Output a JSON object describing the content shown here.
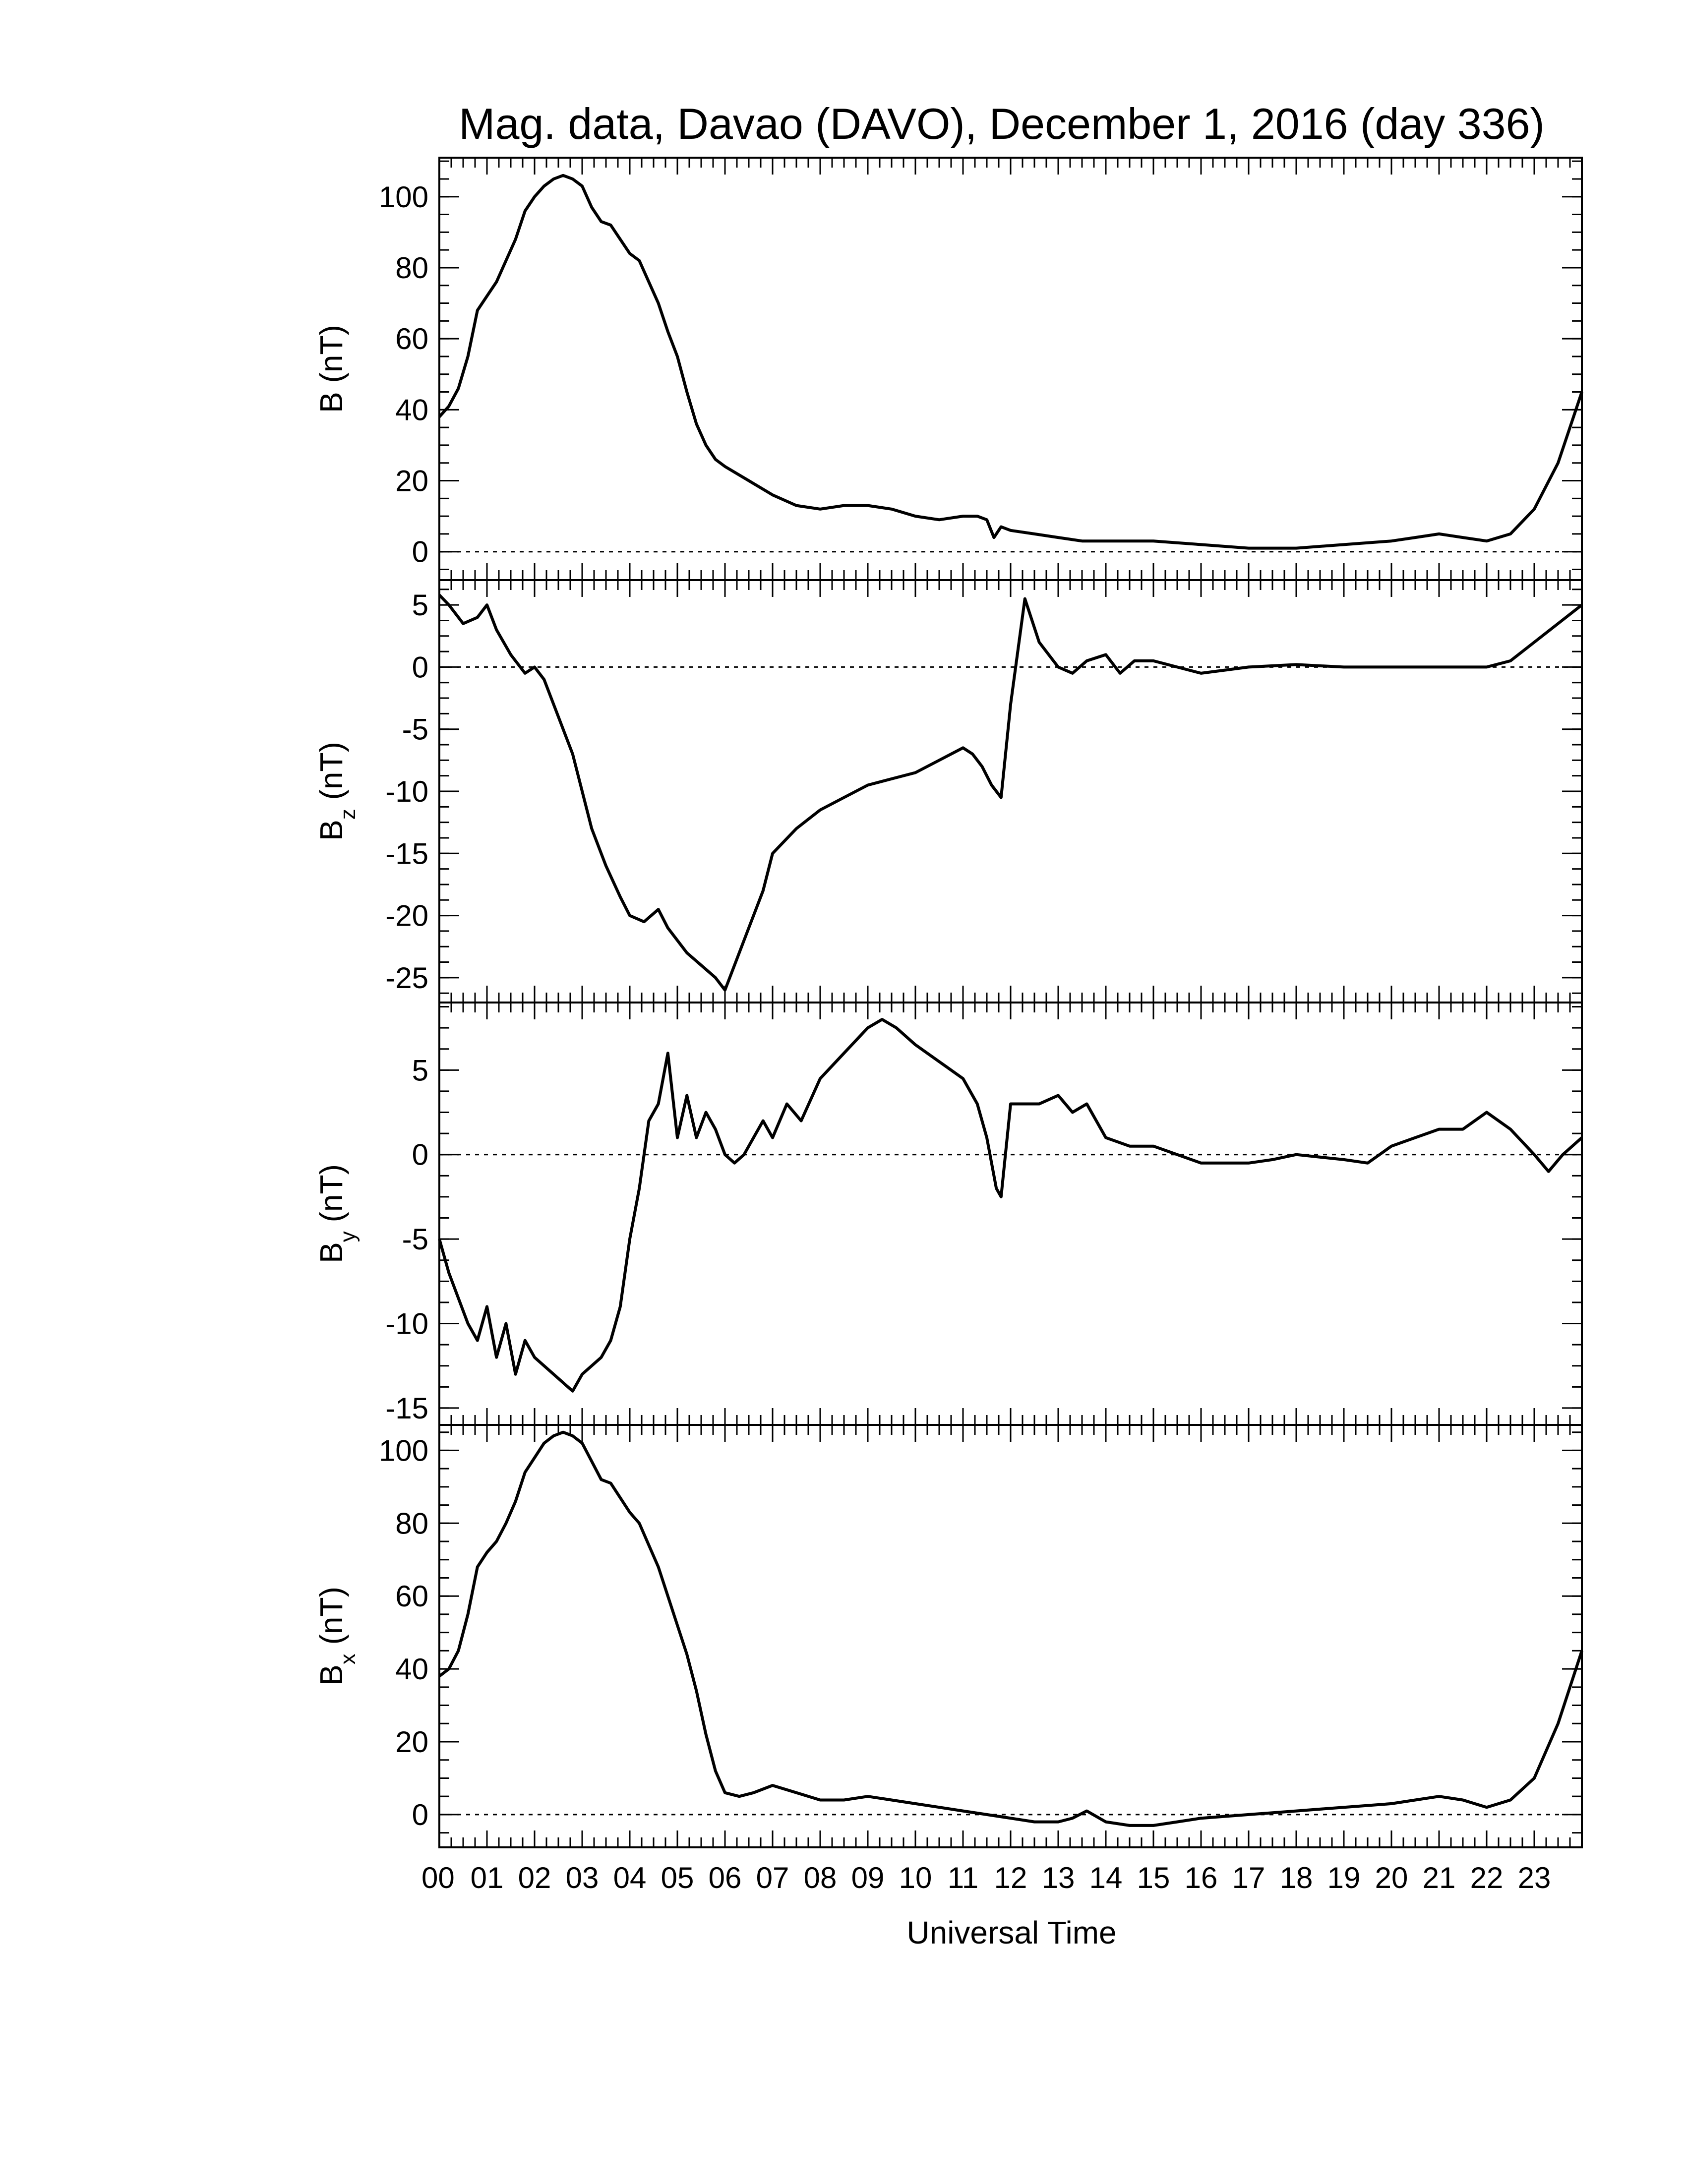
{
  "chart_data": {
    "type": "line",
    "title": "Mag. data, Davao (DAVO), December 1, 2016 (day 336)",
    "xlabel": "Universal Time",
    "x_ticks": [
      "00",
      "01",
      "02",
      "03",
      "04",
      "05",
      "06",
      "07",
      "08",
      "09",
      "10",
      "11",
      "12",
      "13",
      "14",
      "15",
      "16",
      "17",
      "18",
      "19",
      "20",
      "21",
      "22",
      "23"
    ],
    "xlim": [
      0,
      24
    ],
    "grid": false,
    "panels": [
      {
        "name": "B",
        "ylabel_main": "B",
        "ylabel_sub": "",
        "ylabel_unit": "(nT)",
        "ylim": [
          -8,
          111
        ],
        "yticks": [
          0,
          20,
          40,
          60,
          80,
          100
        ],
        "zero_line": true,
        "x": [
          0,
          0.2,
          0.4,
          0.6,
          0.8,
          1.0,
          1.2,
          1.4,
          1.6,
          1.8,
          2.0,
          2.2,
          2.4,
          2.6,
          2.8,
          3.0,
          3.2,
          3.4,
          3.6,
          3.8,
          4.0,
          4.2,
          4.4,
          4.6,
          4.8,
          5.0,
          5.2,
          5.4,
          5.6,
          5.8,
          6.0,
          6.5,
          7.0,
          7.5,
          8.0,
          8.5,
          9.0,
          9.5,
          10.0,
          10.5,
          11.0,
          11.3,
          11.5,
          11.65,
          11.8,
          12.0,
          12.5,
          13.0,
          13.5,
          14.0,
          14.5,
          15.0,
          16.0,
          17.0,
          18.0,
          19.0,
          20.0,
          20.5,
          21.0,
          21.5,
          22.0,
          22.5,
          23.0,
          23.5,
          24.0
        ],
        "values": [
          38,
          41,
          46,
          55,
          68,
          72,
          76,
          82,
          88,
          96,
          100,
          103,
          105,
          106,
          105,
          103,
          97,
          93,
          92,
          88,
          84,
          82,
          76,
          70,
          62,
          55,
          45,
          36,
          30,
          26,
          24,
          20,
          16,
          13,
          12,
          13,
          13,
          12,
          10,
          9,
          10,
          10,
          9,
          4,
          7,
          6,
          5,
          4,
          3,
          3,
          3,
          3,
          2,
          1,
          1,
          2,
          3,
          4,
          5,
          4,
          3,
          5,
          12,
          25,
          45
        ]
      },
      {
        "name": "Bz",
        "ylabel_main": "B",
        "ylabel_sub": "z",
        "ylabel_unit": "(nT)",
        "ylim": [
          -27,
          7
        ],
        "yticks": [
          5,
          0,
          -5,
          -10,
          -15,
          -20,
          -25
        ],
        "zero_line": true,
        "x": [
          0,
          0.2,
          0.5,
          0.8,
          1.0,
          1.2,
          1.5,
          1.8,
          2.0,
          2.2,
          2.5,
          2.8,
          3.0,
          3.2,
          3.5,
          3.8,
          4.0,
          4.3,
          4.6,
          4.8,
          5.0,
          5.2,
          5.5,
          5.8,
          6.0,
          6.2,
          6.5,
          6.8,
          7.0,
          7.5,
          8.0,
          8.5,
          9.0,
          9.5,
          10.0,
          10.5,
          11.0,
          11.2,
          11.4,
          11.6,
          11.8,
          12.0,
          12.3,
          12.6,
          13.0,
          13.3,
          13.6,
          14.0,
          14.3,
          14.6,
          15.0,
          16.0,
          17.0,
          18.0,
          19.0,
          20.0,
          21.0,
          22.0,
          22.5,
          23.0,
          23.5,
          24.0
        ],
        "values": [
          5.8,
          5,
          3.5,
          4,
          5,
          3,
          1,
          -0.5,
          0,
          -1,
          -4,
          -7,
          -10,
          -13,
          -16,
          -18.5,
          -20,
          -20.5,
          -19.5,
          -21,
          -22,
          -23,
          -24,
          -25,
          -26,
          -24,
          -21,
          -18,
          -15,
          -13,
          -11.5,
          -10.5,
          -9.5,
          -9,
          -8.5,
          -7.5,
          -6.5,
          -7,
          -8,
          -9.5,
          -10.5,
          -3,
          5.5,
          2,
          0,
          -0.5,
          0.5,
          1,
          -0.5,
          0.5,
          0.5,
          -0.5,
          0,
          0.2,
          0,
          0,
          0,
          0,
          0.5,
          2,
          3.5,
          5
        ]
      },
      {
        "name": "By",
        "ylabel_main": "B",
        "ylabel_sub": "y",
        "ylabel_unit": "(nT)",
        "ylim": [
          -16,
          9
        ],
        "yticks": [
          5,
          0,
          -5,
          -10,
          -15
        ],
        "zero_line": true,
        "x": [
          0,
          0.2,
          0.4,
          0.6,
          0.8,
          1.0,
          1.2,
          1.4,
          1.6,
          1.8,
          2.0,
          2.2,
          2.4,
          2.6,
          2.8,
          3.0,
          3.2,
          3.4,
          3.6,
          3.8,
          4.0,
          4.2,
          4.4,
          4.6,
          4.8,
          5.0,
          5.2,
          5.4,
          5.6,
          5.8,
          6.0,
          6.2,
          6.4,
          6.6,
          6.8,
          7.0,
          7.3,
          7.6,
          8.0,
          8.5,
          9.0,
          9.3,
          9.6,
          10.0,
          10.5,
          11.0,
          11.3,
          11.5,
          11.7,
          11.8,
          12.0,
          12.3,
          12.6,
          13.0,
          13.3,
          13.6,
          14.0,
          14.5,
          15.0,
          16.0,
          17.0,
          17.5,
          18.0,
          19.0,
          19.5,
          20.0,
          20.5,
          21.0,
          21.5,
          22.0,
          22.5,
          23.0,
          23.3,
          23.6,
          24.0
        ],
        "values": [
          -5,
          -7,
          -8.5,
          -10,
          -11,
          -9,
          -12,
          -10,
          -13,
          -11,
          -12,
          -12.5,
          -13,
          -13.5,
          -14,
          -13,
          -12.5,
          -12,
          -11,
          -9,
          -5,
          -2,
          2,
          3,
          6,
          1,
          3.5,
          1,
          2.5,
          1.5,
          0,
          -0.5,
          0,
          1,
          2,
          1,
          3,
          2,
          4.5,
          6,
          7.5,
          8,
          7.5,
          6.5,
          5.5,
          4.5,
          3,
          1,
          -2,
          -2.5,
          3,
          3,
          3,
          3.5,
          2.5,
          3,
          1,
          0.5,
          0.5,
          -0.5,
          -0.5,
          -0.3,
          0,
          -0.3,
          -0.5,
          0.5,
          1,
          1.5,
          1.5,
          2.5,
          1.5,
          0,
          -1,
          0,
          1
        ]
      },
      {
        "name": "Bx",
        "ylabel_main": "B",
        "ylabel_sub": "x",
        "ylabel_unit": "(nT)",
        "ylim": [
          -9,
          107
        ],
        "yticks": [
          0,
          20,
          40,
          60,
          80,
          100
        ],
        "zero_line": true,
        "x": [
          0,
          0.2,
          0.4,
          0.6,
          0.8,
          1.0,
          1.2,
          1.4,
          1.6,
          1.8,
          2.0,
          2.2,
          2.4,
          2.6,
          2.8,
          3.0,
          3.2,
          3.4,
          3.6,
          3.8,
          4.0,
          4.2,
          4.4,
          4.6,
          4.8,
          5.0,
          5.2,
          5.4,
          5.6,
          5.8,
          6.0,
          6.3,
          6.6,
          7.0,
          7.5,
          8.0,
          8.5,
          9.0,
          9.5,
          10.0,
          10.5,
          11.0,
          11.5,
          12.0,
          12.5,
          13.0,
          13.3,
          13.6,
          14.0,
          14.5,
          15.0,
          15.5,
          16.0,
          17.0,
          18.0,
          19.0,
          20.0,
          20.5,
          21.0,
          21.5,
          22.0,
          22.5,
          23.0,
          23.5,
          24.0
        ],
        "values": [
          38,
          40,
          45,
          55,
          68,
          72,
          75,
          80,
          86,
          94,
          98,
          102,
          104,
          105,
          104,
          102,
          97,
          92,
          91,
          87,
          83,
          80,
          74,
          68,
          60,
          52,
          44,
          34,
          22,
          12,
          6,
          5,
          6,
          8,
          6,
          4,
          4,
          5,
          4,
          3,
          2,
          1,
          0,
          -1,
          -2,
          -2,
          -1,
          1,
          -2,
          -3,
          -3,
          -2,
          -1,
          0,
          1,
          2,
          3,
          4,
          5,
          4,
          2,
          4,
          10,
          25,
          45
        ]
      }
    ]
  }
}
